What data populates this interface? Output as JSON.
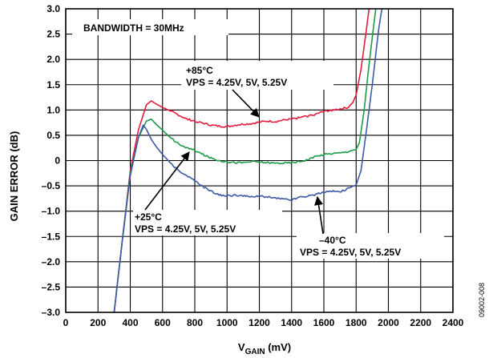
{
  "chart_data": {
    "type": "line",
    "title": "",
    "xlabel": "V",
    "xlabel_sub": "GAIN",
    "xlabel_unit": " (mV)",
    "ylabel": "GAIN ERROR (dB)",
    "xlim": [
      0,
      2400
    ],
    "ylim": [
      -3.0,
      3.0
    ],
    "grid": true,
    "x_ticks": [
      0,
      200,
      400,
      600,
      800,
      1000,
      1200,
      1400,
      1600,
      1800,
      2000,
      2200,
      2400
    ],
    "y_ticks": [
      3.0,
      2.5,
      2.0,
      1.5,
      1.0,
      0.5,
      0,
      -0.5,
      -1.0,
      -1.5,
      -2.0,
      -2.5,
      -3.0
    ],
    "x_tick_labels": [
      "0",
      "200",
      "400",
      "600",
      "800",
      "1000",
      "1200",
      "1400",
      "1600",
      "1800",
      "2000",
      "2200",
      "2400"
    ],
    "y_tick_labels": [
      "3.0",
      "2.5",
      "2.0",
      "1.5",
      "1.0",
      "0.5",
      "0",
      "–0.5",
      "–1.0",
      "–1.5",
      "–2.0",
      "–2.5",
      "–3.0"
    ],
    "series": [
      {
        "name": "+85°C",
        "color": "#e31c3d",
        "x": [
          300,
          350,
          400,
          450,
          500,
          530,
          560,
          600,
          650,
          700,
          750,
          800,
          850,
          900,
          950,
          1000,
          1050,
          1100,
          1150,
          1200,
          1250,
          1300,
          1350,
          1400,
          1450,
          1500,
          1550,
          1600,
          1650,
          1700,
          1750,
          1780,
          1800,
          1830,
          1860,
          1880,
          1900
        ],
        "y": [
          -3.0,
          -1.6,
          -0.2,
          0.6,
          1.1,
          1.18,
          1.12,
          1.05,
          0.98,
          0.9,
          0.82,
          0.78,
          0.74,
          0.7,
          0.68,
          0.67,
          0.7,
          0.72,
          0.73,
          0.76,
          0.78,
          0.77,
          0.8,
          0.82,
          0.85,
          0.88,
          0.92,
          0.97,
          1.0,
          1.02,
          1.05,
          1.15,
          1.3,
          1.8,
          2.5,
          3.0,
          3.2
        ]
      },
      {
        "name": "+25°C",
        "color": "#1e9a48",
        "x": [
          300,
          350,
          400,
          450,
          500,
          530,
          560,
          600,
          650,
          700,
          750,
          800,
          850,
          900,
          950,
          1000,
          1050,
          1100,
          1150,
          1200,
          1250,
          1300,
          1350,
          1400,
          1450,
          1500,
          1550,
          1600,
          1650,
          1700,
          1750,
          1800,
          1820,
          1850,
          1880,
          1910,
          1930
        ],
        "y": [
          -3.0,
          -1.6,
          -0.25,
          0.45,
          0.78,
          0.82,
          0.72,
          0.6,
          0.45,
          0.33,
          0.25,
          0.2,
          0.12,
          0.05,
          0.0,
          -0.02,
          -0.04,
          -0.04,
          -0.02,
          -0.03,
          -0.04,
          -0.05,
          -0.05,
          -0.04,
          -0.02,
          0.02,
          0.08,
          0.12,
          0.14,
          0.15,
          0.18,
          0.22,
          0.35,
          1.0,
          1.9,
          2.7,
          3.2
        ]
      },
      {
        "name": "−40°C",
        "color": "#3c5aa6",
        "x": [
          300,
          350,
          400,
          450,
          480,
          500,
          530,
          560,
          600,
          650,
          700,
          750,
          800,
          850,
          900,
          950,
          1000,
          1050,
          1100,
          1150,
          1200,
          1250,
          1300,
          1350,
          1400,
          1450,
          1500,
          1550,
          1600,
          1650,
          1700,
          1750,
          1800,
          1830,
          1860,
          1900,
          1940,
          1970
        ],
        "y": [
          -3.0,
          -1.6,
          -0.3,
          0.45,
          0.7,
          0.62,
          0.42,
          0.28,
          0.12,
          -0.05,
          -0.2,
          -0.3,
          -0.4,
          -0.52,
          -0.6,
          -0.68,
          -0.7,
          -0.68,
          -0.7,
          -0.72,
          -0.7,
          -0.72,
          -0.74,
          -0.76,
          -0.78,
          -0.72,
          -0.7,
          -0.67,
          -0.62,
          -0.6,
          -0.62,
          -0.55,
          -0.48,
          -0.2,
          0.5,
          1.5,
          2.6,
          3.2
        ]
      }
    ],
    "annotations": {
      "bandwidth": "BANDWIDTH = 30MHz",
      "hot_temp": "+85°C",
      "hot_vps": "VPS = 4.25V, 5V, 5.25V",
      "room_temp": "+25°C",
      "room_vps": "VPS = 4.25V, 5V, 5.25V",
      "cold_temp": "–40°C",
      "cold_vps": "VPS = 4.25V, 5V, 5.25V"
    },
    "figure_id": "09002-008"
  }
}
